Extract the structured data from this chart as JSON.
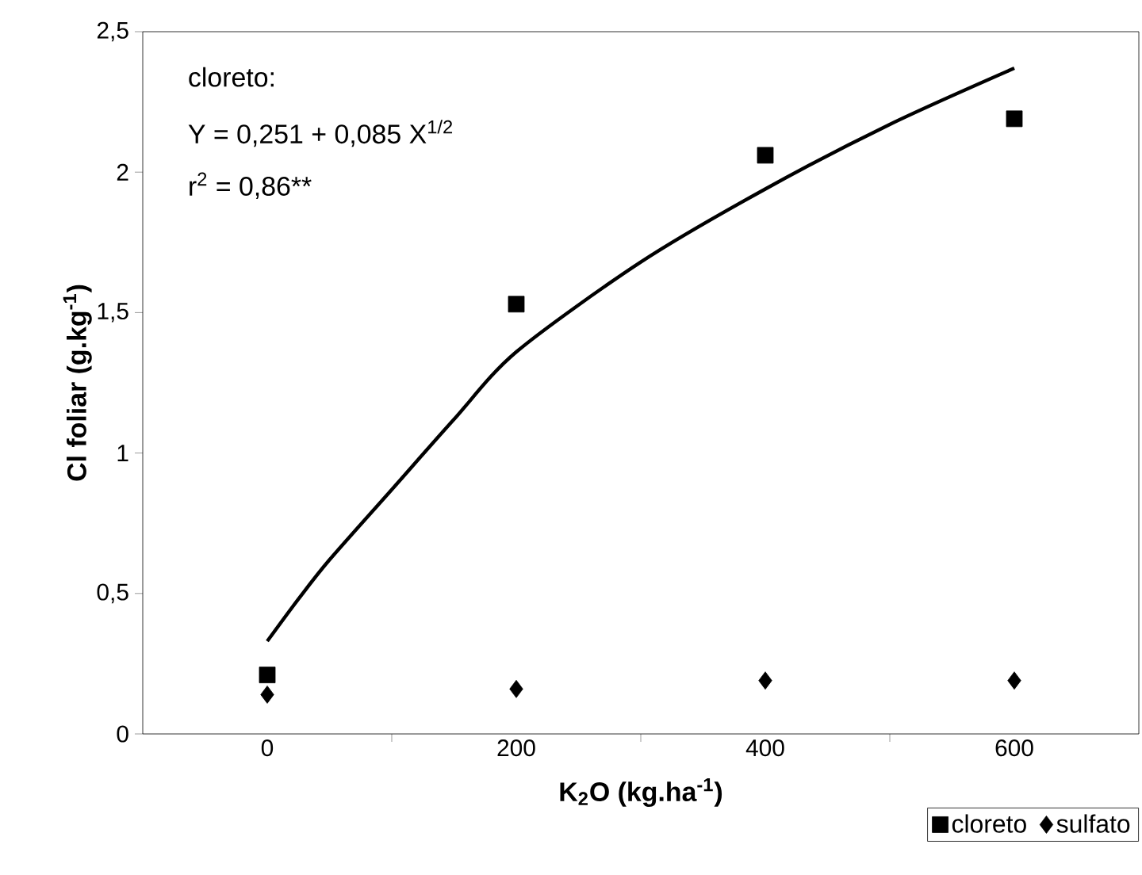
{
  "chart_data": {
    "type": "scatter",
    "xlabel": "K$_{2}$O (kg.ha$^{-1}$)",
    "ylabel": "Cl foliar (g.kg$^{-1}$)",
    "xlim": [
      -100,
      700
    ],
    "xticks": [
      0,
      200,
      400,
      600,
      {
        "value": 100,
        "label": null
      },
      {
        "value": 300,
        "label": null
      },
      {
        "value": 500,
        "label": null
      }
    ],
    "ylim": [
      0,
      2.5
    ],
    "yticks": [
      0,
      {
        "value": 0.5,
        "label": "0,5"
      },
      1,
      {
        "value": 1.5,
        "label": "1,5"
      },
      2,
      {
        "value": 2.5,
        "label": "2,5"
      }
    ],
    "series": [
      {
        "name": "cloreto",
        "marker": "square",
        "color": "#000000",
        "x": [
          0,
          200,
          400,
          600
        ],
        "values": [
          0.21,
          1.53,
          2.06,
          2.19
        ]
      },
      {
        "name": "sulfato",
        "marker": "diamond",
        "color": "#000000",
        "x": [
          0,
          200,
          400,
          600
        ],
        "values": [
          0.14,
          0.16,
          0.19,
          0.19
        ]
      },
      {
        "type": "line",
        "marker": "none",
        "color": "#000000",
        "x": [
          0,
          25,
          50,
          100,
          150,
          200,
          300,
          400,
          500,
          600
        ],
        "values": [
          0.33,
          0.48,
          0.62,
          0.87,
          1.12,
          1.36,
          1.68,
          1.94,
          2.17,
          2.37
        ]
      }
    ],
    "annotations": [
      "cloreto:",
      "Y = 0,251 + 0,085 X$^{1/2}$",
      "r$^{2}$ = 0,86**"
    ],
    "legend": "bottom right",
    "grid": false
  }
}
